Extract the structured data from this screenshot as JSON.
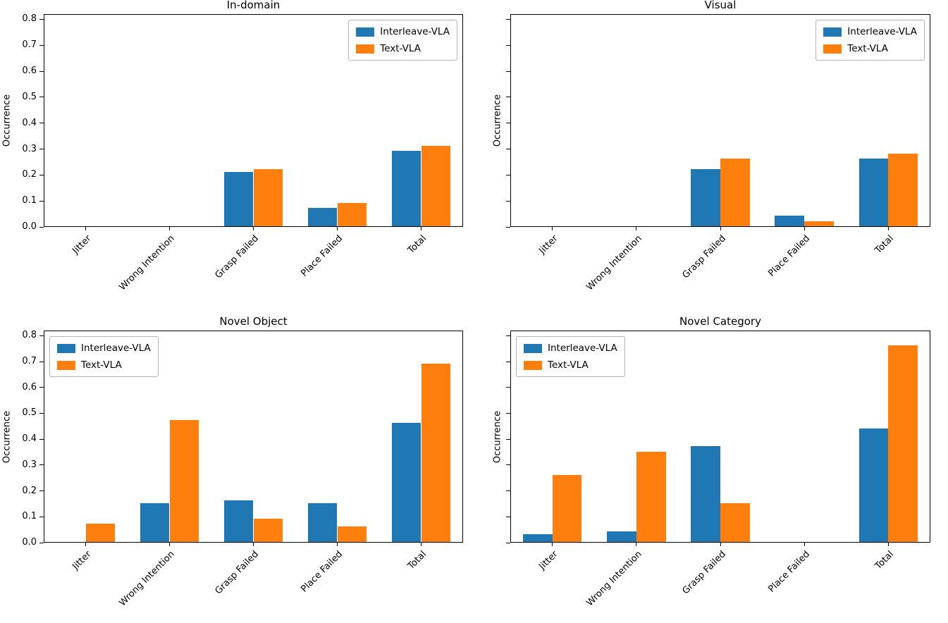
{
  "figure": {
    "background": "#ffffff",
    "series_colors": [
      "#1f77b4",
      "#ff7f0e"
    ],
    "legend_labels": [
      "Interleave-VLA",
      "Text-VLA"
    ]
  },
  "chart_data": [
    {
      "type": "bar",
      "title": "In-domain",
      "ylabel": "Occurrence",
      "categories": [
        "Jitter",
        "Wrong Intention",
        "Grasp Failed",
        "Place Failed",
        "Total"
      ],
      "series": [
        {
          "name": "Interleave-VLA",
          "color": "#1f77b4",
          "values": [
            0,
            0,
            0.21,
            0.07,
            0.29
          ]
        },
        {
          "name": "Text-VLA",
          "color": "#ff7f0e",
          "values": [
            0,
            0,
            0.22,
            0.09,
            0.31
          ]
        }
      ],
      "ylim": [
        0,
        0.82
      ],
      "yticks": [
        0,
        0.1,
        0.2,
        0.3,
        0.4,
        0.5,
        0.6,
        0.7,
        0.8
      ],
      "ytick_labels": [
        "0.0",
        "0.1",
        "0.2",
        "0.3",
        "0.4",
        "0.5",
        "0.6",
        "0.7",
        "0.8"
      ],
      "ytick_labels_visible": true,
      "grid": false,
      "legend_position": "top-right"
    },
    {
      "type": "bar",
      "title": "Visual",
      "ylabel": "Occurrence",
      "categories": [
        "Jitter",
        "Wrong Intention",
        "Grasp Failed",
        "Place Failed",
        "Total"
      ],
      "series": [
        {
          "name": "Interleave-VLA",
          "color": "#1f77b4",
          "values": [
            0,
            0,
            0.22,
            0.04,
            0.26
          ]
        },
        {
          "name": "Text-VLA",
          "color": "#ff7f0e",
          "values": [
            0,
            0,
            0.26,
            0.02,
            0.28
          ]
        }
      ],
      "ylim": [
        0,
        0.82
      ],
      "yticks": [
        0,
        0.1,
        0.2,
        0.3,
        0.4,
        0.5,
        0.6,
        0.7,
        0.8
      ],
      "ytick_labels": [],
      "ytick_labels_visible": false,
      "grid": false,
      "legend_position": "top-right"
    },
    {
      "type": "bar",
      "title": "Novel Object",
      "ylabel": "Occurrence",
      "categories": [
        "Jitter",
        "Wrong Intention",
        "Grasp Failed",
        "Place Failed",
        "Total"
      ],
      "series": [
        {
          "name": "Interleave-VLA",
          "color": "#1f77b4",
          "values": [
            0,
            0.15,
            0.16,
            0.15,
            0.46
          ]
        },
        {
          "name": "Text-VLA",
          "color": "#ff7f0e",
          "values": [
            0.07,
            0.47,
            0.09,
            0.06,
            0.69
          ]
        }
      ],
      "ylim": [
        0,
        0.82
      ],
      "yticks": [
        0,
        0.1,
        0.2,
        0.3,
        0.4,
        0.5,
        0.6,
        0.7,
        0.8
      ],
      "ytick_labels": [
        "0.0",
        "0.1",
        "0.2",
        "0.3",
        "0.4",
        "0.5",
        "0.6",
        "0.7",
        "0.8"
      ],
      "ytick_labels_visible": true,
      "grid": false,
      "legend_position": "top-left"
    },
    {
      "type": "bar",
      "title": "Novel Category",
      "ylabel": "Occurrence",
      "categories": [
        "Jitter",
        "Wrong Intention",
        "Grasp Failed",
        "Place Failed",
        "Total"
      ],
      "series": [
        {
          "name": "Interleave-VLA",
          "color": "#1f77b4",
          "values": [
            0.03,
            0.04,
            0.37,
            0,
            0.44
          ]
        },
        {
          "name": "Text-VLA",
          "color": "#ff7f0e",
          "values": [
            0.26,
            0.35,
            0.15,
            0,
            0.76
          ]
        }
      ],
      "ylim": [
        0,
        0.82
      ],
      "yticks": [
        0,
        0.1,
        0.2,
        0.3,
        0.4,
        0.5,
        0.6,
        0.7,
        0.8
      ],
      "ytick_labels": [],
      "ytick_labels_visible": false,
      "grid": false,
      "legend_position": "top-left"
    }
  ]
}
